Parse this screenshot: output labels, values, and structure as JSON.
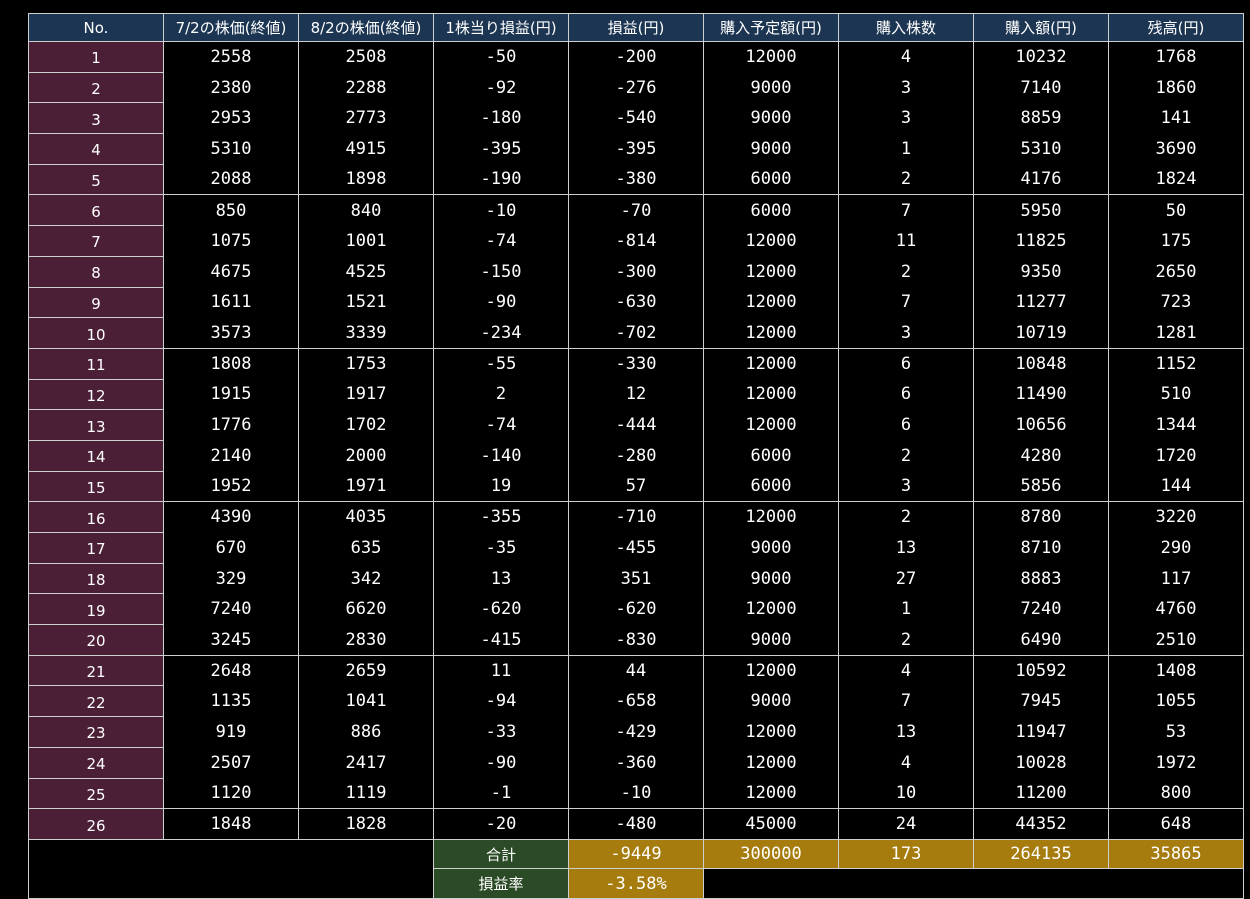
{
  "header": [
    "No.",
    "7/2の株価(終値)",
    "8/2の株価(終値)",
    "1株当り損益(円)",
    "損益(円)",
    "購入予定額(円)",
    "購入株数",
    "購入額(円)",
    "残高(円)"
  ],
  "rows": [
    [
      1,
      2558,
      2508,
      -50,
      -200,
      12000,
      4,
      10232,
      1768
    ],
    [
      2,
      2380,
      2288,
      -92,
      -276,
      9000,
      3,
      7140,
      1860
    ],
    [
      3,
      2953,
      2773,
      -180,
      -540,
      9000,
      3,
      8859,
      141
    ],
    [
      4,
      5310,
      4915,
      -395,
      -395,
      9000,
      1,
      5310,
      3690
    ],
    [
      5,
      2088,
      1898,
      -190,
      -380,
      6000,
      2,
      4176,
      1824
    ],
    [
      6,
      850,
      840,
      -10,
      -70,
      6000,
      7,
      5950,
      50
    ],
    [
      7,
      1075,
      1001,
      -74,
      -814,
      12000,
      11,
      11825,
      175
    ],
    [
      8,
      4675,
      4525,
      -150,
      -300,
      12000,
      2,
      9350,
      2650
    ],
    [
      9,
      1611,
      1521,
      -90,
      -630,
      12000,
      7,
      11277,
      723
    ],
    [
      10,
      3573,
      3339,
      -234,
      -702,
      12000,
      3,
      10719,
      1281
    ],
    [
      11,
      1808,
      1753,
      -55,
      -330,
      12000,
      6,
      10848,
      1152
    ],
    [
      12,
      1915,
      1917,
      2,
      12,
      12000,
      6,
      11490,
      510
    ],
    [
      13,
      1776,
      1702,
      -74,
      -444,
      12000,
      6,
      10656,
      1344
    ],
    [
      14,
      2140,
      2000,
      -140,
      -280,
      6000,
      2,
      4280,
      1720
    ],
    [
      15,
      1952,
      1971,
      19,
      57,
      6000,
      3,
      5856,
      144
    ],
    [
      16,
      4390,
      4035,
      -355,
      -710,
      12000,
      2,
      8780,
      3220
    ],
    [
      17,
      670,
      635,
      -35,
      -455,
      9000,
      13,
      8710,
      290
    ],
    [
      18,
      329,
      342,
      13,
      351,
      9000,
      27,
      8883,
      117
    ],
    [
      19,
      7240,
      6620,
      -620,
      -620,
      12000,
      1,
      7240,
      4760
    ],
    [
      20,
      3245,
      2830,
      -415,
      -830,
      9000,
      2,
      6490,
      2510
    ],
    [
      21,
      2648,
      2659,
      11,
      44,
      12000,
      4,
      10592,
      1408
    ],
    [
      22,
      1135,
      1041,
      -94,
      -658,
      9000,
      7,
      7945,
      1055
    ],
    [
      23,
      919,
      886,
      -33,
      -429,
      12000,
      13,
      11947,
      53
    ],
    [
      24,
      2507,
      2417,
      -90,
      -360,
      12000,
      4,
      10028,
      1972
    ],
    [
      25,
      1120,
      1119,
      -1,
      -10,
      12000,
      10,
      11200,
      800
    ],
    [
      26,
      1848,
      1828,
      -20,
      -480,
      45000,
      24,
      44352,
      648
    ]
  ],
  "total": {
    "label": "合計",
    "values": [
      -9449,
      300000,
      173,
      264135,
      35865
    ]
  },
  "rate": {
    "label": "損益率",
    "value": "-3.58%"
  }
}
